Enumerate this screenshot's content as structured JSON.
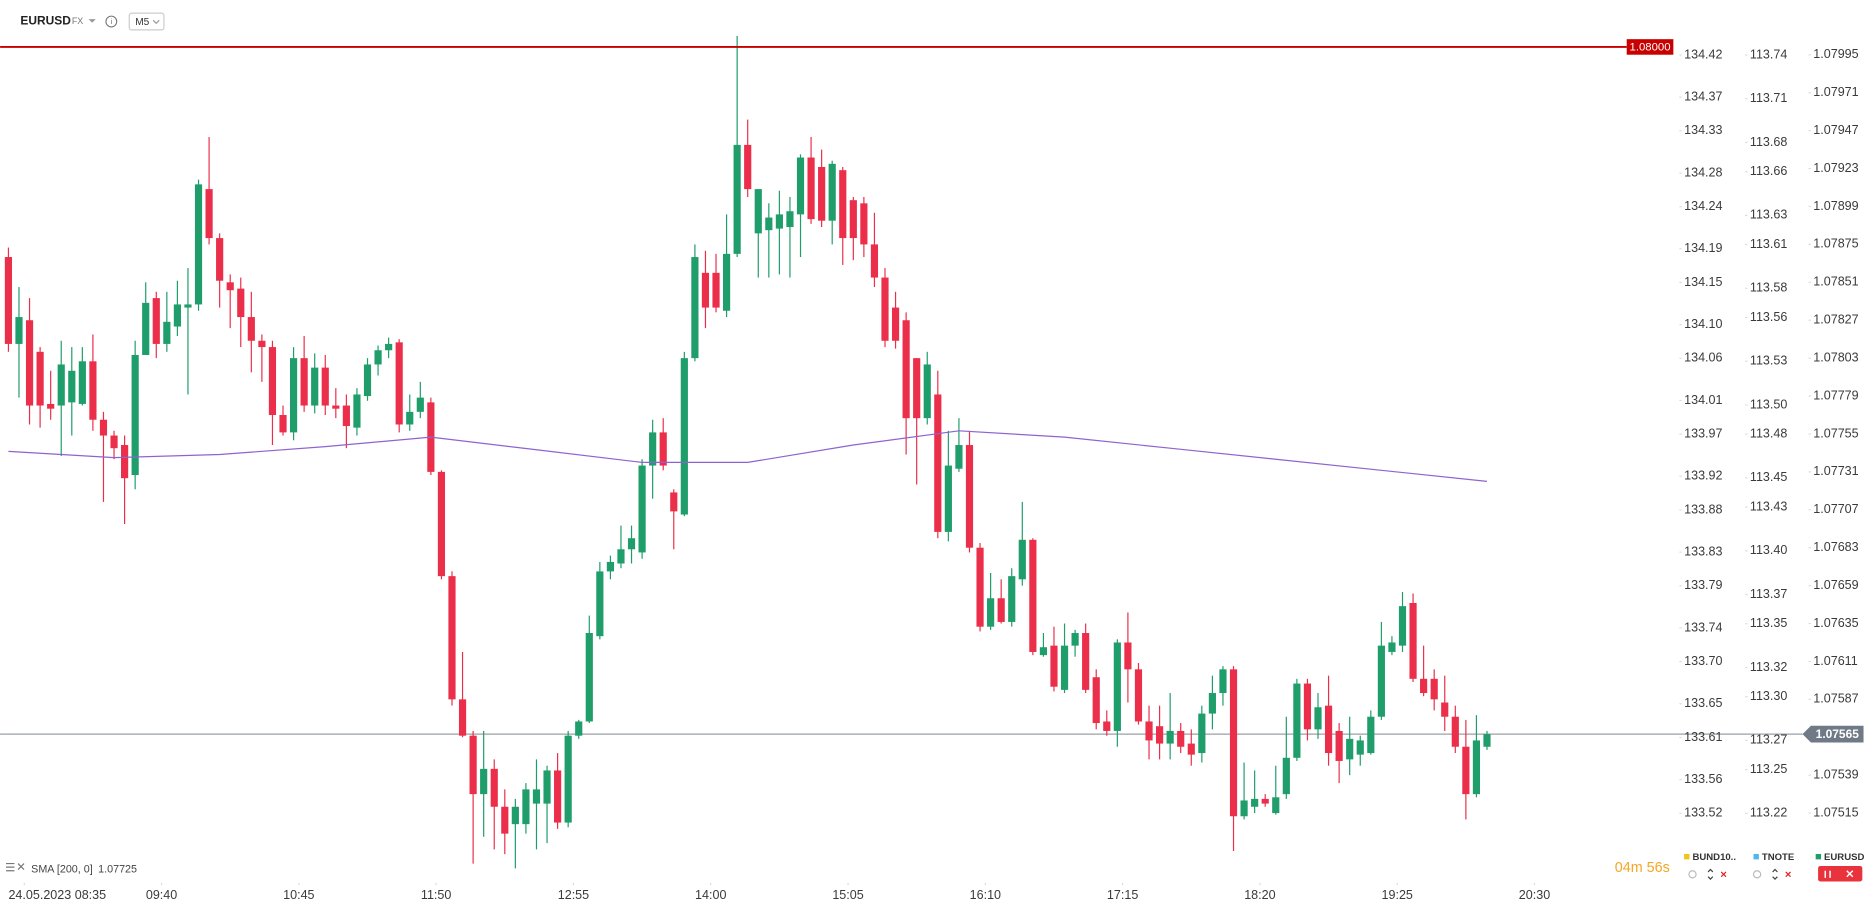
{
  "header": {
    "symbol": "EURUSD",
    "market": "FX",
    "timeframe": "M5"
  },
  "chart_data": {
    "type": "candlestick",
    "up_color": "#1f9e6b",
    "down_color": "#eb2f4a",
    "xlim": [
      -0.79,
      157.76
    ],
    "xticks": [
      {
        "value": 1.5,
        "label": "24.05.2023  08:35"
      },
      {
        "value": 14.5,
        "label": "09:40"
      },
      {
        "value": 27.5,
        "label": "10:45"
      },
      {
        "value": 40.5,
        "label": "11:50"
      },
      {
        "value": 53.5,
        "label": "12:55"
      },
      {
        "value": 66.5,
        "label": "14:00"
      },
      {
        "value": 79.5,
        "label": "15:05"
      },
      {
        "value": 92.5,
        "label": "16:10"
      },
      {
        "value": 105.5,
        "label": "17:15"
      },
      {
        "value": 118.5,
        "label": "18:20"
      },
      {
        "value": 131.5,
        "label": "19:25"
      },
      {
        "value": 144.5,
        "label": "20:30"
      }
    ],
    "ylim": [
      1.07477,
      1.08007
    ],
    "yticks": [
      1.07995,
      1.07971,
      1.07947,
      1.07923,
      1.07899,
      1.07875,
      1.07851,
      1.07827,
      1.07803,
      1.07779,
      1.07755,
      1.07731,
      1.07707,
      1.07683,
      1.07659,
      1.07635,
      1.07611,
      1.07587,
      1.07539,
      1.07515
    ],
    "y2lim": [
      133.449,
      134.4427
    ],
    "y2ticks": [
      134.42,
      134.37,
      134.33,
      134.28,
      134.24,
      134.19,
      134.15,
      {
        "value": 134.1,
        "label": "134.10"
      },
      134.06,
      134.01,
      133.97,
      133.92,
      133.88,
      133.83,
      133.79,
      133.74,
      {
        "value": 133.7,
        "label": "133.70"
      },
      133.65,
      133.61,
      133.56,
      133.52
    ],
    "y3lim": [
      113.179,
      113.7531
    ],
    "y3ticks": [
      113.74,
      113.71,
      113.68,
      113.66,
      113.63,
      113.61,
      113.58,
      113.56,
      113.53,
      {
        "value": 113.5,
        "label": "113.50"
      },
      113.48,
      113.45,
      113.43,
      {
        "value": 113.4,
        "label": "113.40"
      },
      113.37,
      113.35,
      113.32,
      {
        "value": 113.3,
        "label": "113.30"
      },
      113.27,
      113.25,
      113.22
    ],
    "open": [
      1.07867,
      1.07812,
      1.07827,
      1.07807,
      1.07774,
      1.07773,
      1.07775,
      1.07774,
      1.07801,
      1.07764,
      1.07754,
      1.07748,
      1.07729,
      1.07805,
      1.07841,
      1.07812,
      1.07823,
      1.07835,
      1.07837,
      1.0791,
      1.07879,
      1.07851,
      1.07847,
      1.07829,
      1.07814,
      1.0781,
      1.07767,
      1.07756,
      1.07803,
      1.07773,
      1.07797,
      1.07773,
      1.07773,
      1.07759,
      1.07779,
      1.07799,
      1.07808,
      1.07813,
      1.07761,
      1.07769,
      1.07775,
      1.07731,
      1.07665,
      1.07587,
      1.07564,
      1.07527,
      1.07543,
      1.07519,
      1.07508,
      1.07508,
      1.07521,
      1.07521,
      1.07542,
      1.07509,
      1.07564,
      1.07573,
      1.07627,
      1.07668,
      1.07673,
      1.07682,
      1.0768,
      1.07735,
      1.07756,
      1.07718,
      1.07704,
      1.07803,
      1.07857,
      1.07857,
      1.07833,
      1.07869,
      1.07938,
      1.07882,
      1.07884,
      1.07885,
      1.07886,
      1.07894,
      1.0793,
      1.07924,
      1.0789,
      1.07922,
      1.07903,
      1.07901,
      1.07875,
      1.07854,
      1.07835,
      1.07827,
      1.07803,
      1.07765,
      1.0778,
      1.07693,
      1.07733,
      1.07748,
      1.07683,
      1.07633,
      1.07651,
      1.07636,
      1.07663,
      1.07688,
      1.07615,
      1.07621,
      1.07593,
      1.07621,
      1.07629,
      1.07601,
      1.07573,
      1.07567,
      1.07623,
      1.07606,
      1.07573,
      1.0757,
      1.07559,
      1.07567,
      1.07559,
      1.07553,
      1.07578,
      1.07591,
      1.07606,
      1.07513,
      1.07519,
      1.07524,
      1.07515,
      1.07527,
      1.0755,
      1.07597,
      1.07568,
      1.07583,
      1.07567,
      1.07549,
      1.07552,
      1.07553,
      1.07576,
      1.07617,
      1.07621,
      1.07648,
      1.076,
      1.076,
      1.07585,
      1.07576,
      1.07557,
      1.07527,
      1.07557
    ],
    "high": [
      1.07873,
      1.07848,
      1.07841,
      1.0781,
      1.07795,
      1.07814,
      1.0781,
      1.0781,
      1.07818,
      1.07769,
      1.07757,
      1.07754,
      1.07814,
      1.07851,
      1.07845,
      1.07845,
      1.07852,
      1.0786,
      1.07916,
      1.07943,
      1.07882,
      1.07856,
      1.07854,
      1.07845,
      1.07818,
      1.07814,
      1.07773,
      1.0781,
      1.07817,
      1.07806,
      1.07805,
      1.07784,
      1.0778,
      1.07784,
      1.07803,
      1.07811,
      1.07816,
      1.07815,
      1.0778,
      1.07788,
      1.07778,
      1.07732,
      1.07668,
      1.07617,
      1.07567,
      1.07567,
      1.07549,
      1.0753,
      1.07524,
      1.07534,
      1.07549,
      1.07545,
      1.07553,
      1.07567,
      1.07574,
      1.0764,
      1.07674,
      1.07678,
      1.07697,
      1.07697,
      1.07739,
      1.07764,
      1.07765,
      1.0772,
      1.07807,
      1.07875,
      1.07871,
      1.07869,
      1.07894,
      1.08007,
      1.07954,
      1.0791,
      1.07901,
      1.07909,
      1.07905,
      1.07932,
      1.07943,
      1.07935,
      1.07928,
      1.07924,
      1.07905,
      1.07905,
      1.07895,
      1.0786,
      1.07845,
      1.07832,
      1.07803,
      1.07807,
      1.07795,
      1.07757,
      1.07765,
      1.07757,
      1.07686,
      1.07667,
      1.07663,
      1.0767,
      1.07712,
      1.07689,
      1.07629,
      1.07633,
      1.07635,
      1.07631,
      1.07635,
      1.07606,
      1.0758,
      1.07625,
      1.07642,
      1.0761,
      1.07583,
      1.07583,
      1.07591,
      1.07572,
      1.07568,
      1.07583,
      1.07602,
      1.07608,
      1.07608,
      1.07547,
      1.07542,
      1.07527,
      1.07545,
      1.07576,
      1.076,
      1.076,
      1.07591,
      1.07602,
      1.07572,
      1.07576,
      1.07564,
      1.0758,
      1.07636,
      1.07627,
      1.07655,
      1.07654,
      1.07621,
      1.07606,
      1.07602,
      1.07583,
      1.07574,
      1.07577,
      1.07567
    ],
    "low": [
      1.07807,
      1.07778,
      1.07761,
      1.07759,
      1.07764,
      1.07741,
      1.07754,
      1.07773,
      1.07757,
      1.07712,
      1.07739,
      1.07698,
      1.0772,
      1.07805,
      1.07803,
      1.07807,
      1.07817,
      1.0778,
      1.07833,
      1.07875,
      1.07835,
      1.07822,
      1.0781,
      1.07794,
      1.07788,
      1.07748,
      1.07754,
      1.07751,
      1.07769,
      1.07768,
      1.07767,
      1.07765,
      1.07746,
      1.07754,
      1.07776,
      1.07792,
      1.07803,
      1.07756,
      1.07757,
      1.07765,
      1.07729,
      1.07663,
      1.07583,
      1.07563,
      1.07483,
      1.075,
      1.07492,
      1.07489,
      1.0748,
      1.07502,
      1.07492,
      1.07496,
      1.07505,
      1.07506,
      1.07562,
      1.07572,
      1.07625,
      1.07663,
      1.0767,
      1.07673,
      1.07676,
      1.07714,
      1.07732,
      1.07682,
      1.07703,
      1.07801,
      1.07822,
      1.07832,
      1.07829,
      1.07867,
      1.07905,
      1.07854,
      1.07854,
      1.07856,
      1.07854,
      1.07867,
      1.07888,
      1.07886,
      1.07875,
      1.07862,
      1.07865,
      1.07867,
      1.07848,
      1.0781,
      1.07809,
      1.07742,
      1.07723,
      1.07761,
      1.07689,
      1.07687,
      1.07731,
      1.0768,
      1.0763,
      1.07631,
      1.07635,
      1.07633,
      1.07659,
      1.07615,
      1.07614,
      1.07592,
      1.07591,
      1.07614,
      1.07591,
      1.07568,
      1.07564,
      1.07557,
      1.07585,
      1.07571,
      1.07549,
      1.07549,
      1.07549,
      1.07553,
      1.07545,
      1.07547,
      1.07568,
      1.07583,
      1.07491,
      1.07511,
      1.07515,
      1.07519,
      1.07514,
      1.07524,
      1.07548,
      1.07561,
      1.07562,
      1.07545,
      1.07534,
      1.07539,
      1.07545,
      1.07552,
      1.07574,
      1.07615,
      1.07617,
      1.07598,
      1.07589,
      1.0758,
      1.07567,
      1.07553,
      1.07511,
      1.07525,
      1.07555
    ],
    "close": [
      1.07812,
      1.07829,
      1.07773,
      1.07773,
      1.07771,
      1.07799,
      1.07795,
      1.07801,
      1.07764,
      1.07754,
      1.07746,
      1.07727,
      1.07805,
      1.07838,
      1.07812,
      1.07826,
      1.07837,
      1.07837,
      1.07913,
      1.07879,
      1.07852,
      1.07846,
      1.07829,
      1.07814,
      1.0781,
      1.07767,
      1.07756,
      1.07803,
      1.07773,
      1.07797,
      1.07773,
      1.07771,
      1.0776,
      1.0778,
      1.07799,
      1.07808,
      1.07812,
      1.07761,
      1.07769,
      1.07778,
      1.07731,
      1.07665,
      1.07587,
      1.07564,
      1.07527,
      1.07543,
      1.07519,
      1.07502,
      1.07519,
      1.0753,
      1.0753,
      1.07542,
      1.07509,
      1.07564,
      1.07573,
      1.07629,
      1.07668,
      1.07674,
      1.07682,
      1.07689,
      1.07735,
      1.07756,
      1.07735,
      1.07706,
      1.07803,
      1.07867,
      1.07835,
      1.07835,
      1.07869,
      1.07938,
      1.0791,
      1.0791,
      1.07892,
      1.07894,
      1.07896,
      1.0793,
      1.07891,
      1.0789,
      1.07926,
      1.07879,
      1.07879,
      1.07875,
      1.07854,
      1.07814,
      1.07814,
      1.07765,
      1.07765,
      1.07799,
      1.07693,
      1.07735,
      1.07748,
      1.07683,
      1.07633,
      1.07651,
      1.07636,
      1.07665,
      1.07688,
      1.07617,
      1.0762,
      1.07595,
      1.07621,
      1.07629,
      1.07593,
      1.07572,
      1.07567,
      1.07623,
      1.07606,
      1.07573,
      1.07561,
      1.07559,
      1.07567,
      1.07557,
      1.07552,
      1.07578,
      1.07591,
      1.07606,
      1.07513,
      1.07523,
      1.07524,
      1.07521,
      1.07525,
      1.0755,
      1.07597,
      1.07568,
      1.07582,
      1.07553,
      1.07548,
      1.07562,
      1.07561,
      1.07576,
      1.07621,
      1.07623,
      1.07646,
      1.076,
      1.07591,
      1.07587,
      1.07576,
      1.07557,
      1.07527,
      1.07561,
      1.07565
    ],
    "sma": {
      "name": "SMA [200, 0]",
      "value": 1.07725,
      "color": "#8e63cf",
      "x": [
        0,
        10,
        20,
        30,
        40,
        50,
        60,
        70,
        80,
        90,
        100,
        110,
        120,
        130,
        140
      ],
      "values": [
        1.07744,
        1.0774,
        1.07742,
        1.07747,
        1.07753,
        1.07745,
        1.07737,
        1.07737,
        1.07748,
        1.07757,
        1.07753,
        1.07746,
        1.07739,
        1.07732,
        1.07725
      ]
    },
    "hline": {
      "value": 1.08,
      "label": "1.08000",
      "color": "#c80000"
    },
    "last_price": 1.07565,
    "last_price_color": "#6f7a86",
    "countdown": "04m 56s",
    "legend": [
      {
        "name": "BUND10..",
        "color": "#f2c318"
      },
      {
        "name": "TNOTE",
        "color": "#52b6ea"
      },
      {
        "name": "EURUSD",
        "color": "#1f9e6b"
      }
    ]
  }
}
